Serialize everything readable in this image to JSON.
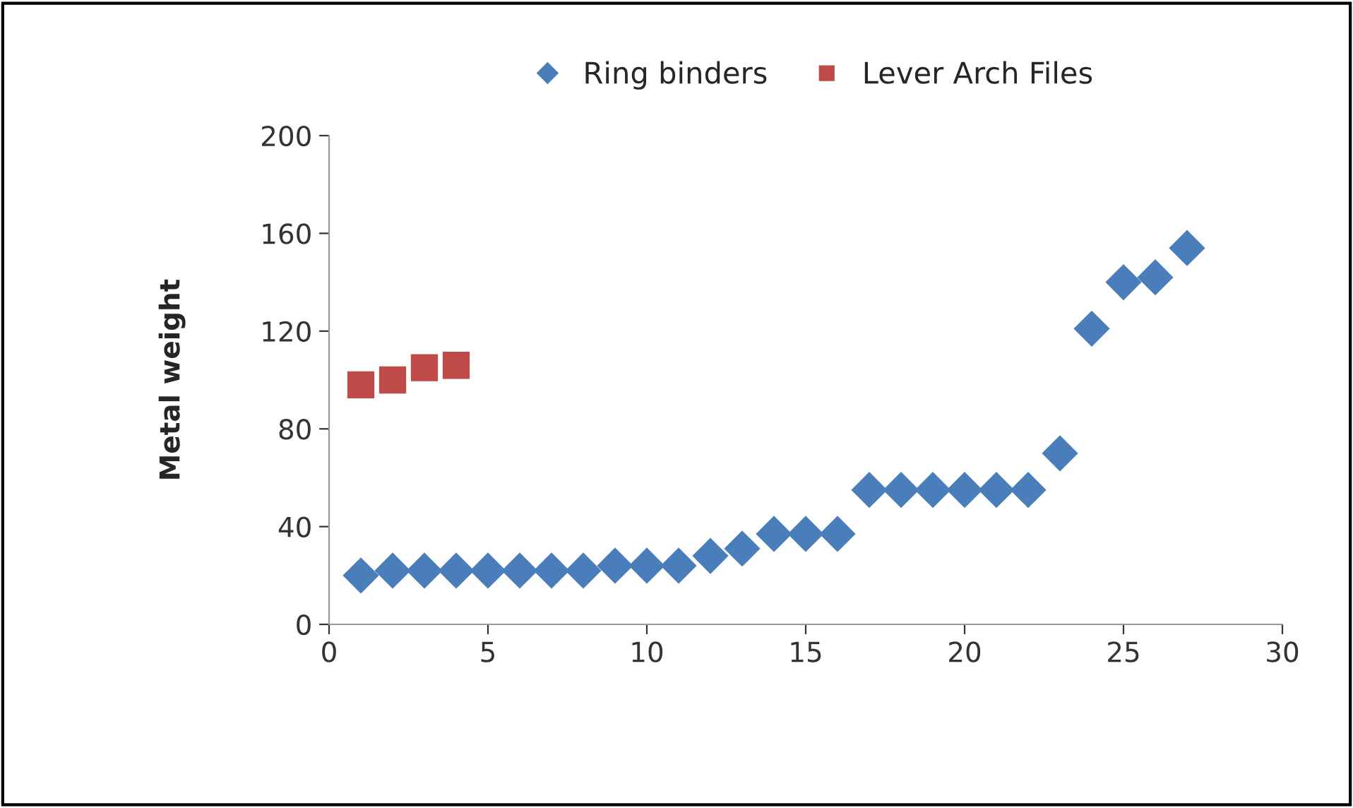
{
  "chart_data": {
    "type": "scatter",
    "ylabel": "Metal weight",
    "x": [
      1,
      2,
      3,
      4,
      5,
      6,
      7,
      8,
      9,
      10,
      11,
      12,
      13,
      14,
      15,
      16,
      17,
      18,
      19,
      20,
      21,
      22,
      23,
      24,
      25,
      26,
      27
    ],
    "series": [
      {
        "name": "Ring binders",
        "color": "#4a7ebb",
        "marker": "diamond",
        "values": [
          20,
          22,
          22,
          22,
          22,
          22,
          22,
          22,
          24,
          24,
          24,
          28,
          31,
          37,
          37,
          37,
          55,
          55,
          55,
          55,
          55,
          55,
          70,
          121,
          140,
          142,
          154
        ]
      },
      {
        "name": "Lever Arch Files",
        "color": "#be4b48",
        "marker": "square",
        "x": [
          1,
          2,
          3,
          4
        ],
        "values": [
          98,
          100,
          105,
          106
        ]
      }
    ],
    "xlim": [
      0,
      30
    ],
    "xticks": [
      0,
      5,
      10,
      15,
      20,
      25,
      30
    ],
    "ylim": [
      0,
      200
    ],
    "yticks": [
      0,
      40,
      80,
      120,
      160,
      200
    ],
    "grid": false,
    "legend": "top"
  }
}
